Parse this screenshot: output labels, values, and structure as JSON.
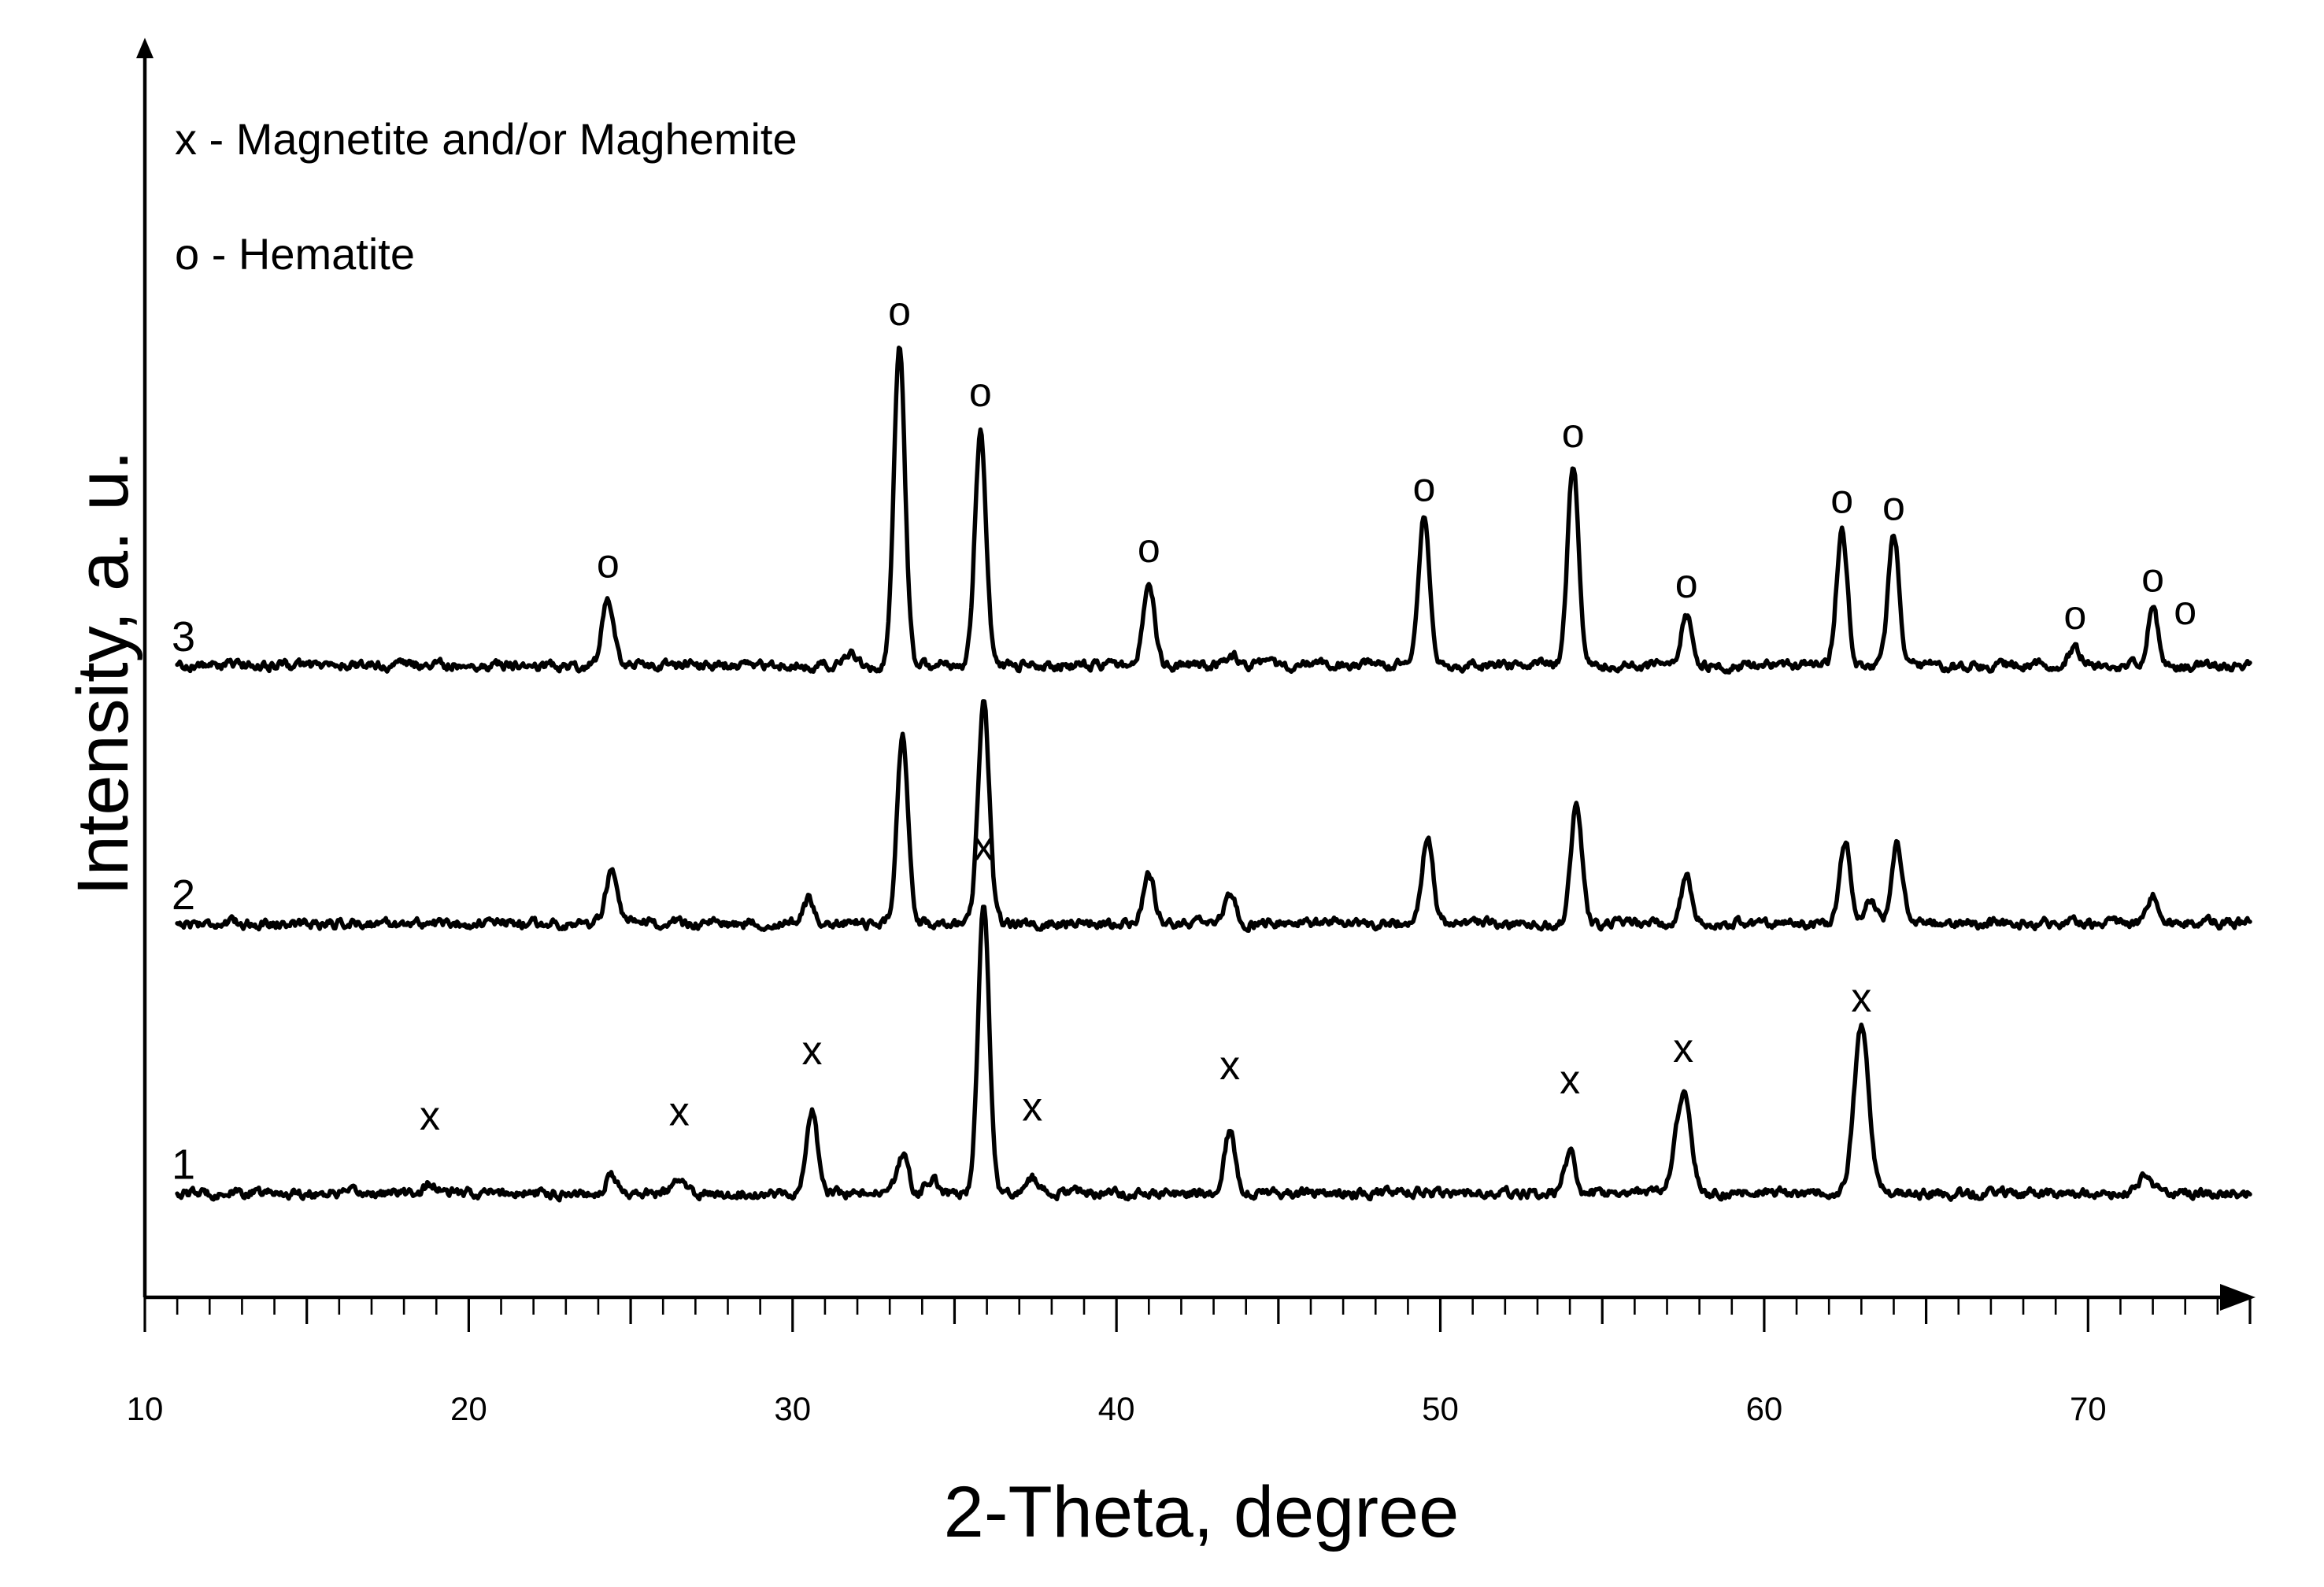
{
  "chart_data": {
    "type": "line",
    "title": "",
    "xlabel": "2-Theta, degree",
    "ylabel": "Intensity, a. u.",
    "xlim": [
      10,
      75
    ],
    "ylim": [
      0,
      100
    ],
    "x_ticks": [
      10,
      20,
      30,
      40,
      50,
      60,
      70
    ],
    "x_tick_labels": [
      "10",
      "20",
      "30",
      "40",
      "50",
      "60",
      "70"
    ],
    "x_minor_step": 1,
    "grid": false,
    "legend_position": "top-left",
    "legend_entries": [
      {
        "symbol": "x",
        "text": "x - Magnetite and/or Maghemite"
      },
      {
        "symbol": "o",
        "text": "o - Hematite"
      }
    ],
    "series": [
      {
        "name": "1",
        "baseline": 7,
        "color": "#000000",
        "peaks": [
          {
            "x": 18.8,
            "height": 0.8
          },
          {
            "x": 24.4,
            "height": 1.5
          },
          {
            "x": 26.5,
            "height": 1.1
          },
          {
            "x": 30.6,
            "height": 7.0
          },
          {
            "x": 33.4,
            "height": 3.2
          },
          {
            "x": 34.3,
            "height": 1.2
          },
          {
            "x": 35.9,
            "height": 24.5
          },
          {
            "x": 37.4,
            "height": 1.3
          },
          {
            "x": 43.5,
            "height": 5.3
          },
          {
            "x": 54.0,
            "height": 3.4
          },
          {
            "x": 57.5,
            "height": 8.4
          },
          {
            "x": 63.0,
            "height": 14.0
          },
          {
            "x": 71.7,
            "height": 1.4
          }
        ],
        "markers": [
          {
            "x": 18.8,
            "y": 12.4,
            "symbol": "x"
          },
          {
            "x": 26.5,
            "y": 12.8,
            "symbol": "x"
          },
          {
            "x": 30.6,
            "y": 18.0,
            "symbol": "x"
          },
          {
            "x": 35.9,
            "y": 35.4,
            "symbol": "x"
          },
          {
            "x": 37.4,
            "y": 13.2,
            "symbol": "x"
          },
          {
            "x": 43.5,
            "y": 16.7,
            "symbol": "x"
          },
          {
            "x": 54.0,
            "y": 15.5,
            "symbol": "x"
          },
          {
            "x": 57.5,
            "y": 18.2,
            "symbol": "x"
          },
          {
            "x": 63.0,
            "y": 22.5,
            "symbol": "x"
          }
        ]
      },
      {
        "name": "2",
        "baseline": 30,
        "color": "#000000",
        "peaks": [
          {
            "x": 24.4,
            "height": 4.4
          },
          {
            "x": 30.5,
            "height": 2.0
          },
          {
            "x": 33.4,
            "height": 16.1
          },
          {
            "x": 35.9,
            "height": 18.8
          },
          {
            "x": 41.0,
            "height": 4.2
          },
          {
            "x": 43.5,
            "height": 2.4
          },
          {
            "x": 49.6,
            "height": 7.3
          },
          {
            "x": 54.2,
            "height": 10.0
          },
          {
            "x": 57.6,
            "height": 3.9
          },
          {
            "x": 62.5,
            "height": 6.9
          },
          {
            "x": 63.3,
            "height": 2.2
          },
          {
            "x": 64.1,
            "height": 6.8
          },
          {
            "x": 72.0,
            "height": 2.3
          }
        ],
        "markers": []
      },
      {
        "name": "3",
        "baseline": 52,
        "color": "#000000",
        "peaks": [
          {
            "x": 24.3,
            "height": 5.9
          },
          {
            "x": 31.8,
            "height": 0.8
          },
          {
            "x": 33.3,
            "height": 27.3
          },
          {
            "x": 35.8,
            "height": 19.9
          },
          {
            "x": 41.0,
            "height": 7.2
          },
          {
            "x": 43.6,
            "height": 0.8
          },
          {
            "x": 49.5,
            "height": 12.5
          },
          {
            "x": 54.1,
            "height": 17.0
          },
          {
            "x": 57.6,
            "height": 4.1
          },
          {
            "x": 62.4,
            "height": 11.5
          },
          {
            "x": 64.0,
            "height": 11.3
          },
          {
            "x": 69.6,
            "height": 1.5
          },
          {
            "x": 72.0,
            "height": 4.6
          }
        ],
        "markers": [
          {
            "x": 24.3,
            "y": 59.5,
            "symbol": "o"
          },
          {
            "x": 33.3,
            "y": 81.0,
            "symbol": "o"
          },
          {
            "x": 35.8,
            "y": 74.1,
            "symbol": "o"
          },
          {
            "x": 41.0,
            "y": 60.8,
            "symbol": "o"
          },
          {
            "x": 49.5,
            "y": 66.0,
            "symbol": "o"
          },
          {
            "x": 54.1,
            "y": 70.6,
            "symbol": "o"
          },
          {
            "x": 57.6,
            "y": 57.8,
            "symbol": "o"
          },
          {
            "x": 62.4,
            "y": 65.0,
            "symbol": "o"
          },
          {
            "x": 64.0,
            "y": 64.4,
            "symbol": "o"
          },
          {
            "x": 69.6,
            "y": 55.1,
            "symbol": "o"
          },
          {
            "x": 72.0,
            "y": 58.3,
            "symbol": "o"
          },
          {
            "x": 73.0,
            "y": 55.5,
            "symbol": "o"
          }
        ]
      }
    ]
  }
}
